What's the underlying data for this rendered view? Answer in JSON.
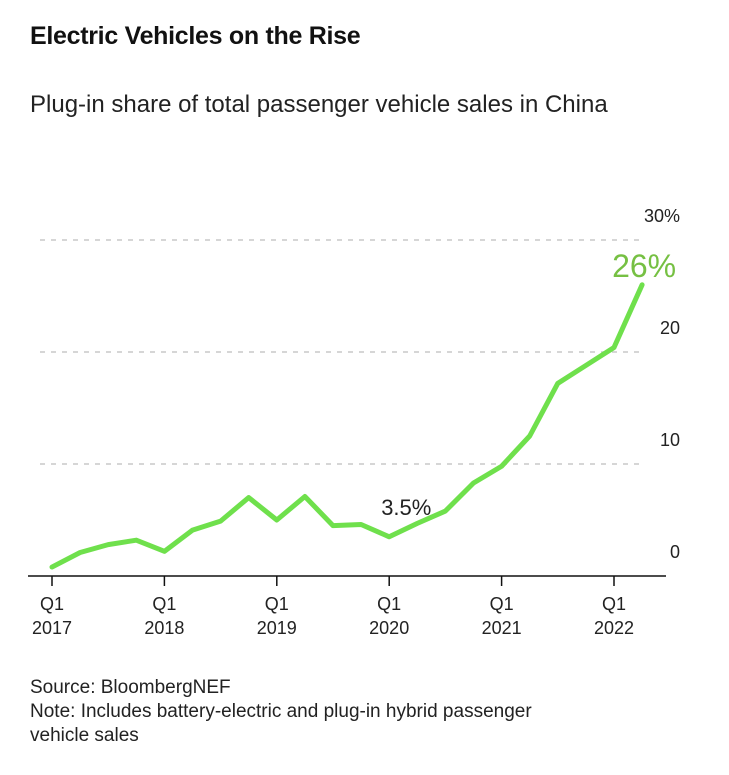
{
  "chart_data": {
    "type": "line",
    "title": "Electric Vehicles on the Rise",
    "subtitle": "Plug-in share of total passenger vehicle sales in China",
    "source": "Source: BloombergNEF",
    "note": "Note: Includes battery-electric and plug-in hybrid passenger vehicle sales",
    "categories": [
      "Q1 2017",
      null,
      null,
      null,
      "Q1 2018",
      null,
      null,
      null,
      "Q1 2019",
      null,
      null,
      null,
      "Q1 2020",
      null,
      null,
      null,
      "Q1 2021",
      null,
      null,
      null,
      "Q1 2022",
      null
    ],
    "values": [
      0.8,
      2.1,
      2.8,
      3.2,
      2.2,
      4.1,
      4.9,
      7.0,
      5.0,
      7.1,
      4.5,
      4.6,
      3.5,
      4.7,
      5.8,
      8.3,
      9.8,
      12.5,
      17.2,
      18.8,
      20.4,
      26
    ],
    "value_labels": [
      null,
      null,
      null,
      null,
      null,
      null,
      null,
      null,
      null,
      null,
      null,
      null,
      "3.5%",
      null,
      null,
      null,
      null,
      null,
      null,
      null,
      null,
      "26%"
    ],
    "color": "#6fe04c",
    "label_color": "#76c043",
    "ylim": [
      0,
      30
    ],
    "yticks": [
      0,
      10,
      20,
      {
        "value": 30,
        "label": "30%"
      }
    ],
    "grid": true
  }
}
